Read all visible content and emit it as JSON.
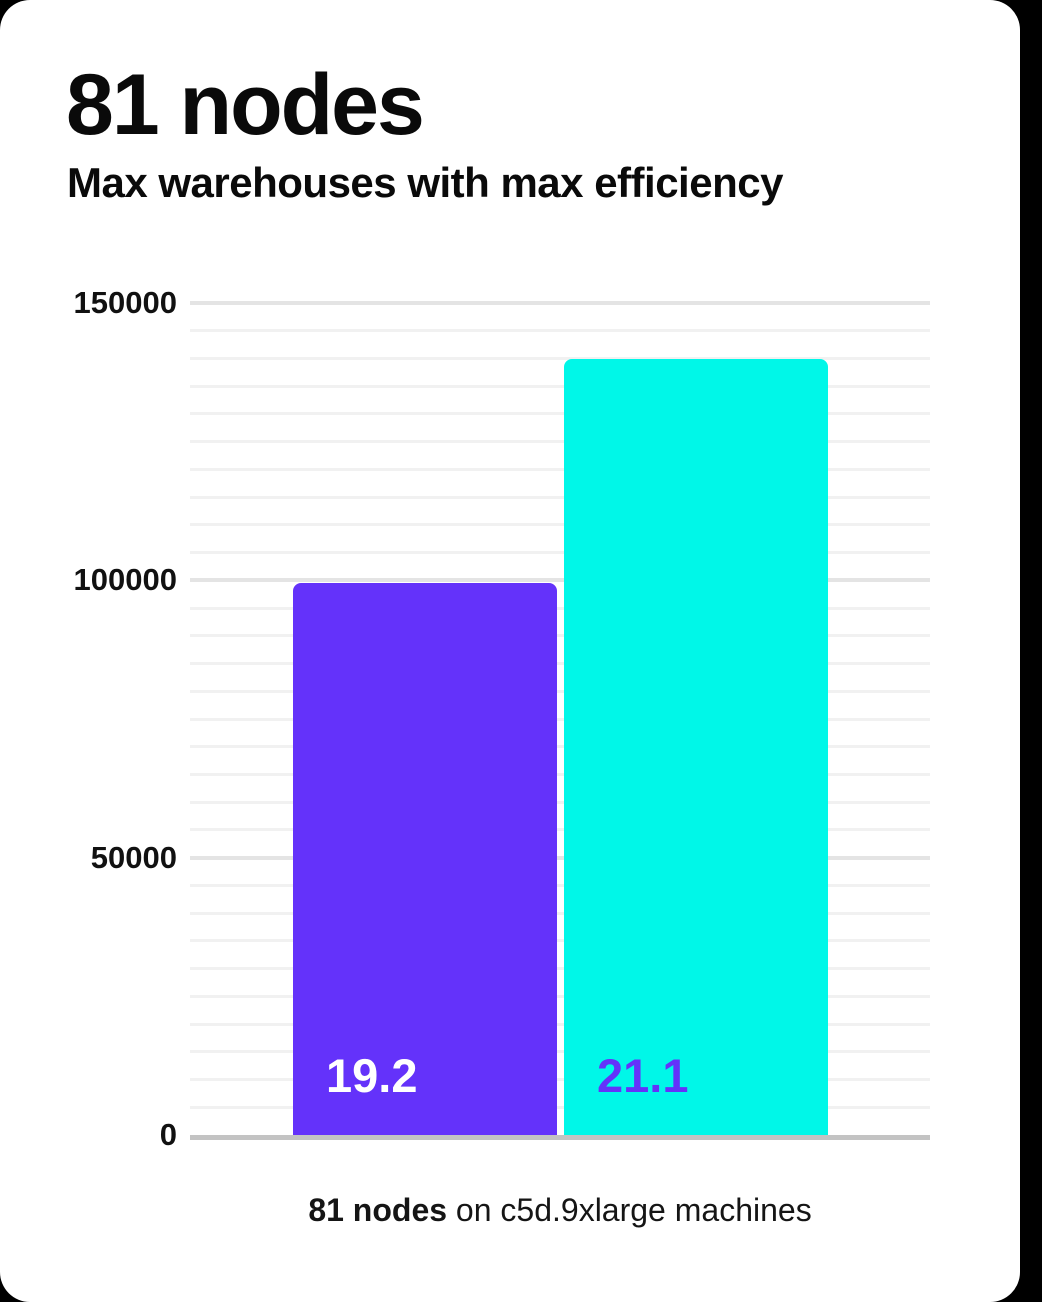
{
  "header": {
    "title": "81 nodes",
    "subtitle": "Max warehouses with max efficiency"
  },
  "caption": {
    "bold": "81 nodes",
    "rest": " on c5d.9xlarge machines"
  },
  "colors": {
    "page_bg": "#000000",
    "card_bg": "#ffffff",
    "purple": "#6432fa",
    "cyan": "#00f7e8",
    "grid_minor": "#f1f1f1",
    "grid_major": "#e4e4e4",
    "axis": "#c3c3c3",
    "text": "#0a0a0a"
  },
  "chart_data": {
    "type": "bar",
    "title": "81 nodes",
    "subtitle": "Max warehouses with max efficiency",
    "caption": "81 nodes on c5d.9xlarge machines",
    "categories": [
      "19.2",
      "21.1"
    ],
    "values": [
      99500,
      140000
    ],
    "bars": [
      {
        "label": "19.2",
        "value": 99500,
        "color": "#6432fa",
        "label_color": "#ffffff"
      },
      {
        "label": "21.1",
        "value": 140000,
        "color": "#00f7e8",
        "label_color": "#6432fa"
      }
    ],
    "xlabel": "",
    "ylabel": "",
    "ylim": [
      0,
      150000
    ],
    "yticks": [
      0,
      50000,
      100000,
      150000
    ],
    "major_gridline_step": 50000,
    "minor_gridline_step": 5000,
    "grid": "horizontal",
    "legend": false
  }
}
